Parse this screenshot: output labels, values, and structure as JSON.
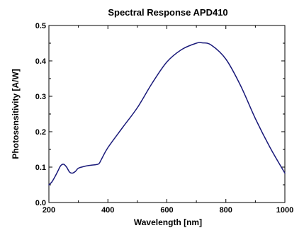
{
  "chart_data": {
    "type": "line",
    "title": "Spectral Response APD410",
    "xlabel": "Wavelength [nm]",
    "ylabel": "Photosensitivity [A/W]",
    "xlim": [
      200,
      1000
    ],
    "ylim": [
      0.0,
      0.5
    ],
    "xticks": [
      200,
      400,
      600,
      800,
      1000
    ],
    "yticks": [
      0.0,
      0.1,
      0.2,
      0.3,
      0.4,
      0.5
    ],
    "xtick_labels": [
      "200",
      "400",
      "600",
      "800",
      "1000"
    ],
    "ytick_labels": [
      "0.0",
      "0.1",
      "0.2",
      "0.3",
      "0.4",
      "0.5"
    ],
    "grid": false,
    "legend": false,
    "line_color": "#1a1a7a",
    "series": [
      {
        "x": [
          200,
          210,
          220,
          230,
          240,
          250,
          260,
          270,
          280,
          290,
          300,
          320,
          340,
          360,
          370,
          380,
          400,
          450,
          500,
          550,
          600,
          650,
          700,
          720,
          750,
          800,
          850,
          900,
          950,
          1000
        ],
        "values": [
          0.05,
          0.058,
          0.072,
          0.088,
          0.104,
          0.108,
          0.1,
          0.086,
          0.083,
          0.088,
          0.097,
          0.102,
          0.105,
          0.107,
          0.11,
          0.125,
          0.155,
          0.212,
          0.268,
          0.337,
          0.397,
          0.432,
          0.45,
          0.451,
          0.445,
          0.405,
          0.33,
          0.237,
          0.155,
          0.083
        ]
      }
    ]
  }
}
